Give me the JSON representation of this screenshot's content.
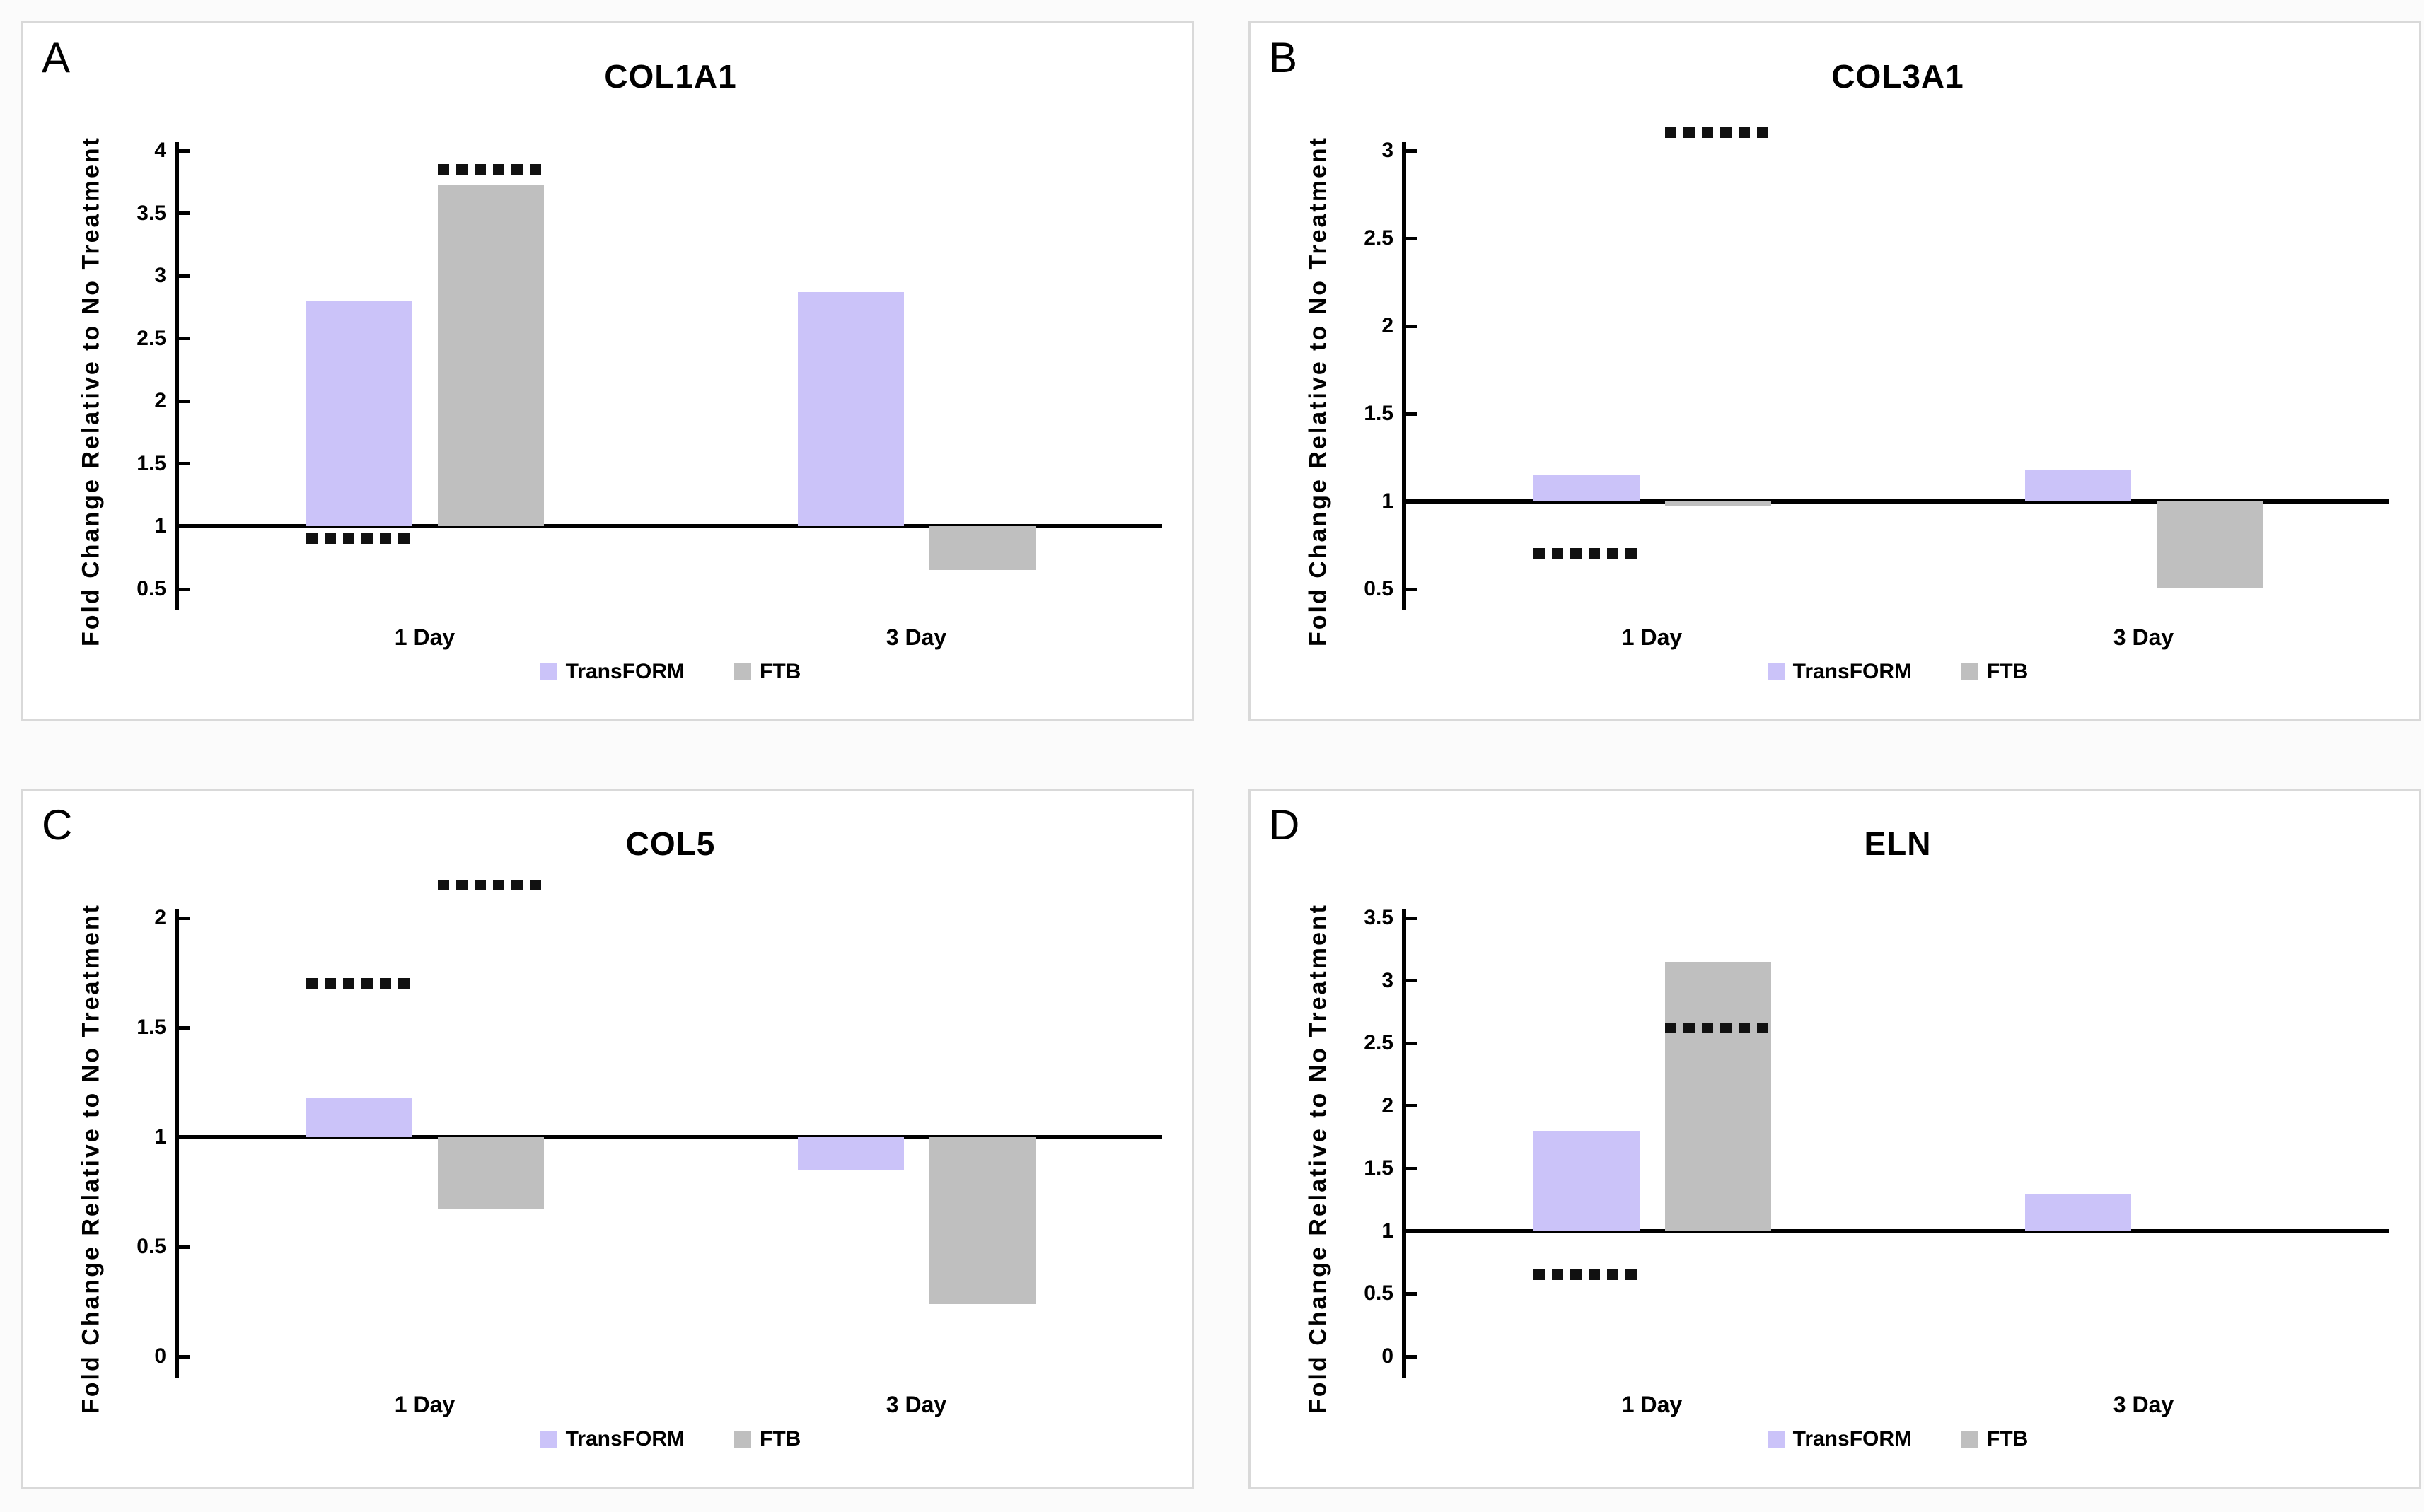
{
  "style": {
    "background": "#ffffff",
    "panel_border": "#d9d9d9",
    "axis_color": "#000000",
    "significance_marker_color": "#111111",
    "transform_color": "#CBC3F9",
    "ftb_color": "#BFBFBF"
  },
  "chart_data": [
    {
      "type": "bar",
      "panel_label": "A",
      "title": "COL1A1",
      "y_label": "Fold Change Relative to No Treatment",
      "x_label": "",
      "categories": [
        "1 Day",
        "3 Day"
      ],
      "series": [
        {
          "name": "TransFORM",
          "color": "#CBC3F9",
          "values": [
            2.8,
            2.87
          ]
        },
        {
          "name": "FTB",
          "color": "#BFBFBF",
          "values": [
            3.73,
            0.65
          ]
        }
      ],
      "baseline": 1,
      "ylim": [
        0.5,
        4
      ],
      "y_tick_step": 0.5,
      "grid": false,
      "legend_position": "bottom",
      "significance_markers": [
        {
          "category": "1 Day",
          "series": "TransFORM",
          "y": 0.9
        },
        {
          "category": "1 Day",
          "series": "FTB",
          "y": 3.85
        }
      ]
    },
    {
      "type": "bar",
      "panel_label": "B",
      "title": "COL3A1",
      "y_label": "Fold Change Relative to No Treatment",
      "x_label": "",
      "categories": [
        "1 Day",
        "3 Day"
      ],
      "series": [
        {
          "name": "TransFORM",
          "color": "#CBC3F9",
          "values": [
            1.15,
            1.18
          ]
        },
        {
          "name": "FTB",
          "color": "#BFBFBF",
          "values": [
            0.97,
            0.51
          ]
        }
      ],
      "baseline": 1,
      "ylim": [
        0.5,
        3
      ],
      "y_tick_step": 0.5,
      "grid": false,
      "legend_position": "bottom",
      "significance_markers": [
        {
          "category": "1 Day",
          "series": "TransFORM",
          "y": 0.7
        },
        {
          "category": "1 Day",
          "series": "FTB",
          "y": 3.1
        }
      ]
    },
    {
      "type": "bar",
      "panel_label": "C",
      "title": "COL5",
      "y_label": "Fold Change Relative to No Treatment",
      "x_label": "",
      "categories": [
        "1 Day",
        "3 Day"
      ],
      "series": [
        {
          "name": "TransFORM",
          "color": "#CBC3F9",
          "values": [
            1.18,
            0.85
          ]
        },
        {
          "name": "FTB",
          "color": "#BFBFBF",
          "values": [
            0.67,
            0.24
          ]
        }
      ],
      "baseline": 1,
      "ylim": [
        0,
        2
      ],
      "y_tick_step": 0.5,
      "grid": false,
      "legend_position": "bottom",
      "significance_markers": [
        {
          "category": "1 Day",
          "series": "TransFORM",
          "y": 1.7
        },
        {
          "category": "1 Day",
          "series": "FTB",
          "y": 2.15
        }
      ]
    },
    {
      "type": "bar",
      "panel_label": "D",
      "title": "ELN",
      "y_label": "Fold Change Relative to No Treatment",
      "x_label": "",
      "categories": [
        "1 Day",
        "3 Day"
      ],
      "series": [
        {
          "name": "TransFORM",
          "color": "#CBC3F9",
          "values": [
            1.8,
            1.3
          ]
        },
        {
          "name": "FTB",
          "color": "#BFBFBF",
          "values": [
            3.15,
            null
          ]
        }
      ],
      "baseline": 1,
      "ylim": [
        0,
        3.5
      ],
      "y_tick_step": 0.5,
      "grid": false,
      "legend_position": "bottom",
      "significance_markers": [
        {
          "category": "1 Day",
          "series": "TransFORM",
          "y": 0.65
        },
        {
          "category": "1 Day",
          "series": "FTB",
          "y": 2.62
        }
      ]
    }
  ]
}
